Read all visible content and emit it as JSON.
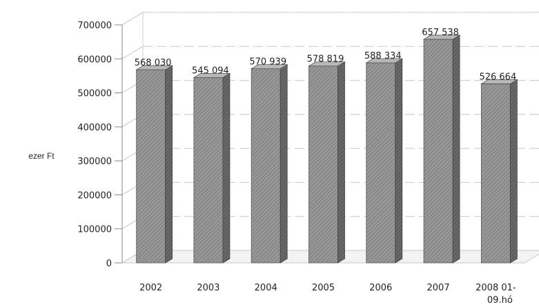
{
  "chart_data": {
    "type": "bar",
    "title": "",
    "xlabel": "",
    "ylabel": "ezer Ft",
    "ylim": [
      0,
      700000
    ],
    "yticks": [
      "0",
      "100000",
      "200000",
      "300000",
      "400000",
      "500000",
      "600000",
      "700000"
    ],
    "categories": [
      "2002",
      "2003",
      "2004",
      "2005",
      "2006",
      "2007",
      "2008 01-09.hó"
    ],
    "values": [
      568030,
      545094,
      570939,
      578819,
      588334,
      657538,
      526664
    ],
    "data_labels": [
      "568 030",
      "545 094",
      "570 939",
      "578 819",
      "588 334",
      "657 538",
      "526 664"
    ],
    "grid": true,
    "bar_color": "#8a8a8a"
  }
}
